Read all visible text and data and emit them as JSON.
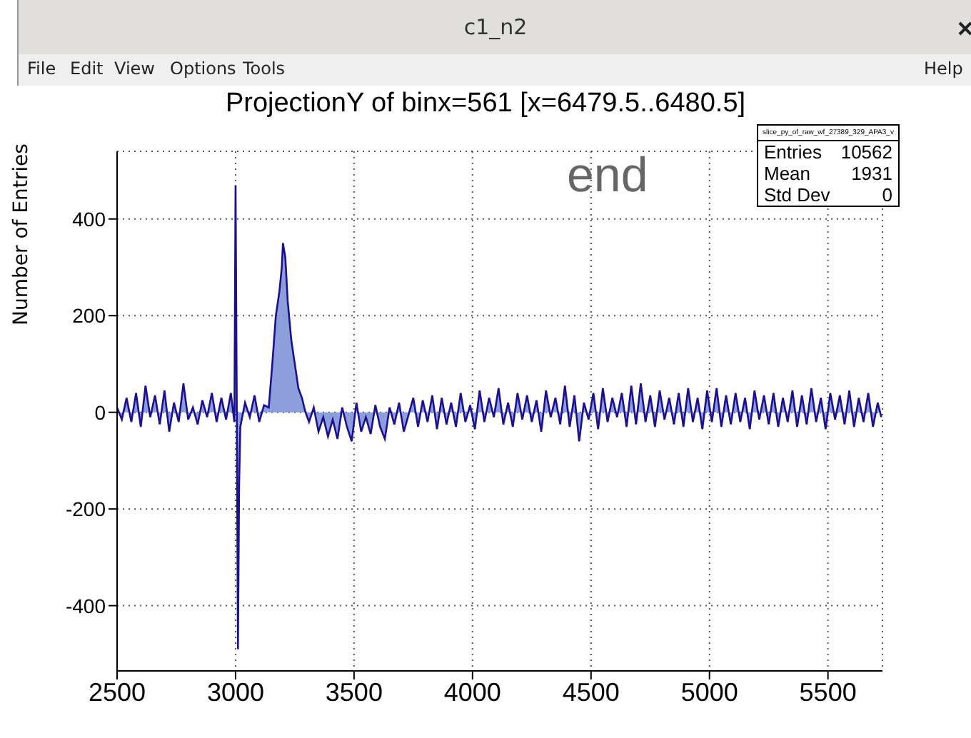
{
  "chart_data": {
    "type": "area",
    "title": "ProjectionY of binx=561 [x=6479.5..6480.5]",
    "ylabel": "Number of Entries",
    "annotations": [
      "c1_n2",
      "File",
      "Edit",
      "View",
      "Options",
      "Tools",
      "Help",
      "end",
      "slice_py_of_raw_wf_27389_329_APA3_v",
      "Entries",
      "10562",
      "Mean",
      "1931",
      "Std Dev",
      "0"
    ],
    "x": [
      2500,
      2520,
      2540,
      2560,
      2580,
      2600,
      2620,
      2640,
      2660,
      2680,
      2700,
      2720,
      2740,
      2760,
      2780,
      2800,
      2820,
      2840,
      2860,
      2880,
      2900,
      2920,
      2940,
      2960,
      2980,
      2995,
      3000,
      3005,
      3010,
      3015,
      3020,
      3040,
      3060,
      3080,
      3100,
      3120,
      3140,
      3155,
      3170,
      3185,
      3195,
      3200,
      3210,
      3220,
      3235,
      3250,
      3265,
      3280,
      3295,
      3310,
      3330,
      3350,
      3370,
      3390,
      3410,
      3430,
      3450,
      3470,
      3490,
      3510,
      3530,
      3550,
      3570,
      3590,
      3610,
      3630,
      3650,
      3670,
      3690,
      3710,
      3730,
      3750,
      3770,
      3790,
      3810,
      3830,
      3850,
      3870,
      3890,
      3910,
      3930,
      3950,
      3970,
      3990,
      4010,
      4030,
      4050,
      4070,
      4090,
      4110,
      4130,
      4150,
      4170,
      4190,
      4210,
      4230,
      4250,
      4270,
      4290,
      4310,
      4330,
      4350,
      4370,
      4390,
      4410,
      4430,
      4450,
      4470,
      4490,
      4510,
      4530,
      4550,
      4570,
      4590,
      4610,
      4630,
      4650,
      4670,
      4690,
      4710,
      4730,
      4750,
      4770,
      4790,
      4810,
      4830,
      4850,
      4870,
      4890,
      4910,
      4930,
      4950,
      4970,
      4990,
      5010,
      5030,
      5050,
      5070,
      5090,
      5110,
      5130,
      5150,
      5170,
      5190,
      5210,
      5230,
      5250,
      5270,
      5290,
      5310,
      5330,
      5350,
      5370,
      5390,
      5410,
      5430,
      5450,
      5470,
      5490,
      5510,
      5530,
      5550,
      5570,
      5590,
      5610,
      5630,
      5650,
      5670,
      5690,
      5710,
      5725
    ],
    "series": [
      {
        "color": "#1a0f96",
        "values": [
          10,
          -15,
          30,
          -20,
          40,
          -30,
          55,
          -10,
          35,
          -25,
          45,
          -40,
          20,
          -20,
          60,
          -15,
          10,
          -25,
          25,
          -10,
          40,
          -20,
          30,
          -15,
          40,
          -20,
          470,
          20,
          -490,
          -150,
          -30,
          20,
          -10,
          35,
          -20,
          15,
          10,
          100,
          200,
          250,
          300,
          350,
          320,
          230,
          150,
          100,
          50,
          30,
          0,
          -20,
          10,
          -40,
          -10,
          -50,
          -15,
          -55,
          10,
          -30,
          -60,
          20,
          -40,
          -10,
          -45,
          15,
          -30,
          -55,
          10,
          -25,
          20,
          -40,
          -5,
          30,
          -30,
          25,
          -20,
          35,
          -35,
          30,
          -25,
          20,
          -30,
          40,
          -20,
          15,
          -35,
          45,
          -20,
          30,
          -10,
          50,
          -25,
          20,
          -30,
          40,
          -15,
          35,
          -20,
          25,
          -40,
          45,
          -10,
          30,
          -25,
          55,
          -30,
          35,
          -60,
          20,
          -15,
          40,
          -35,
          50,
          -20,
          30,
          -10,
          40,
          -30,
          55,
          -25,
          60,
          -20,
          35,
          -30,
          45,
          -15,
          30,
          -25,
          40,
          -30,
          50,
          -20,
          30,
          -35,
          45,
          -20,
          50,
          -30,
          35,
          -25,
          40,
          -20,
          30,
          -35,
          45,
          -15,
          35,
          -25,
          40,
          -30,
          30,
          -20,
          45,
          -30,
          35,
          -25,
          50,
          -20,
          30,
          -35,
          40,
          -15,
          35,
          -25,
          45,
          -30,
          30,
          -20,
          40,
          -30,
          20,
          -10
        ]
      }
    ],
    "xlim": [
      2500,
      5730
    ],
    "xticks": [
      2500,
      3000,
      3500,
      4000,
      4500,
      5000,
      5500
    ],
    "ylim": [
      -535,
      540
    ],
    "yticks": [
      -400,
      -200,
      0,
      200,
      400
    ],
    "grid": true,
    "line_style": "solid",
    "marker": "none"
  }
}
